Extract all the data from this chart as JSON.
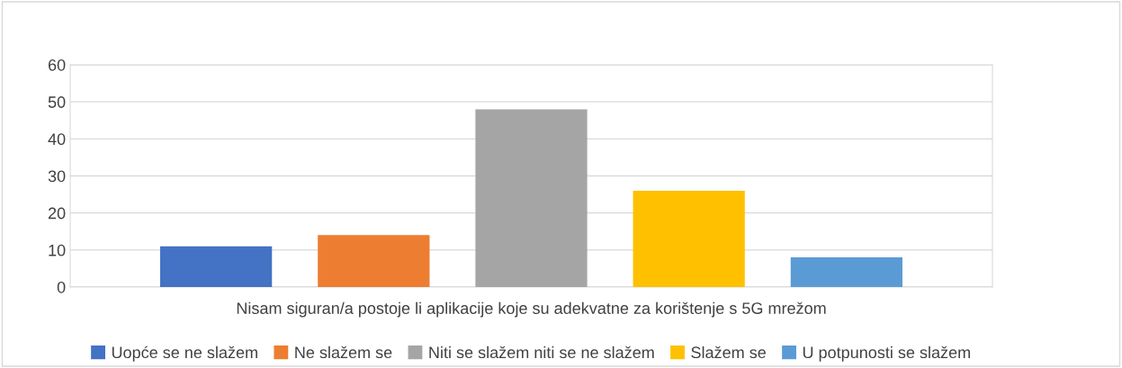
{
  "chart_data": {
    "type": "bar",
    "categories": [
      "Nisam siguran/a postoje li aplikacije koje su adekvatne za korištenje s 5G mrežom"
    ],
    "series": [
      {
        "name": "Uopće se ne slažem",
        "color": "#4472c4",
        "values": [
          11
        ]
      },
      {
        "name": "Ne slažem se",
        "color": "#ed7d31",
        "values": [
          14
        ]
      },
      {
        "name": "Niti se slažem niti se ne slažem",
        "color": "#a5a5a5",
        "values": [
          48
        ]
      },
      {
        "name": "Slažem se",
        "color": "#ffc000",
        "values": [
          26
        ]
      },
      {
        "name": "U potpunosti se slažem",
        "color": "#5b9bd5",
        "values": [
          8
        ]
      }
    ],
    "ylim": [
      0,
      60
    ],
    "yticks": [
      0,
      10,
      20,
      30,
      40,
      50,
      60
    ],
    "grid": "y",
    "legend": "bottom"
  }
}
